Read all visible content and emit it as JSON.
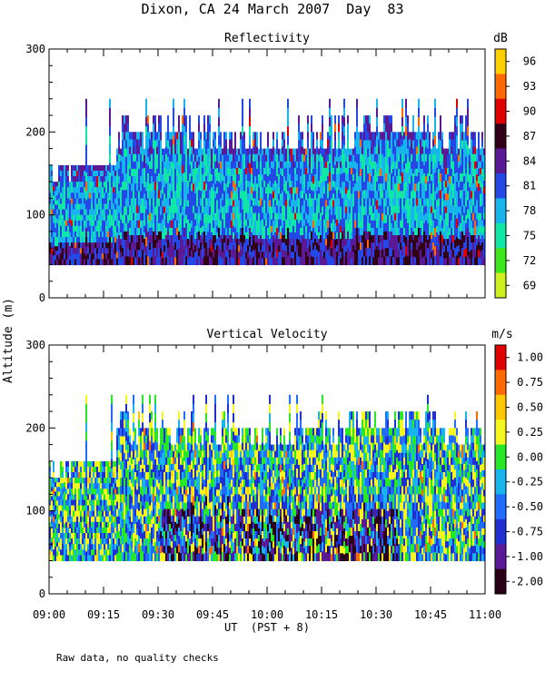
{
  "title": "Dixon, CA 24 March 2007  Day  83",
  "ylabel": "Altitude (m)",
  "xlabel": "UT  (PST + 8)",
  "note": "Raw data, no quality checks",
  "x_ticks": [
    "09:00",
    "09:15",
    "09:30",
    "09:45",
    "10:00",
    "10:15",
    "10:30",
    "10:45",
    "11:00"
  ],
  "chart_data": [
    {
      "type": "heatmap",
      "title": "Reflectivity",
      "x_range": [
        "09:00",
        "11:00"
      ],
      "ylim": [
        0,
        300
      ],
      "y_ticks": [
        0,
        100,
        200,
        300
      ],
      "data_floor_m": 40,
      "echo_top_m": [
        160,
        200,
        240
      ],
      "colorbar": {
        "unit": "dB",
        "labels": [
          "96",
          "93",
          "90",
          "87",
          "84",
          "81",
          "78",
          "75",
          "72",
          "69"
        ],
        "colors": [
          "#ffd000",
          "#ff6a00",
          "#e00000",
          "#300018",
          "#5a1a96",
          "#2448e6",
          "#18b4ee",
          "#10e6a6",
          "#40e61c",
          "#cef020"
        ]
      }
    },
    {
      "type": "heatmap",
      "title": "Vertical Velocity",
      "x_range": [
        "09:00",
        "11:00"
      ],
      "ylim": [
        0,
        300
      ],
      "y_ticks": [
        0,
        100,
        200,
        300
      ],
      "data_floor_m": 40,
      "echo_top_m": [
        160,
        200,
        240
      ],
      "colorbar": {
        "unit": "m/s",
        "labels": [
          "1.00",
          "0.75",
          "0.50",
          "0.25",
          "0.00",
          "-0.25",
          "-0.50",
          "-0.75",
          "-1.00",
          "-2.00"
        ],
        "colors": [
          "#e00000",
          "#ff6a00",
          "#ffc800",
          "#f6f620",
          "#28e628",
          "#18b4ee",
          "#1f6cff",
          "#2030d0",
          "#5a1a96",
          "#2a0018"
        ]
      }
    }
  ]
}
